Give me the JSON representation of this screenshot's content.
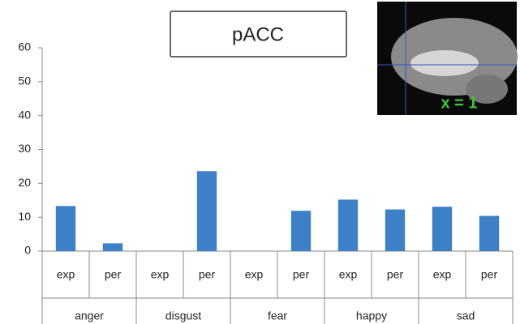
{
  "chart_data": {
    "type": "bar",
    "title": "pACC",
    "groups": [
      "anger",
      "disgust",
      "fear",
      "happy",
      "sad"
    ],
    "categories": [
      "exp",
      "per",
      "exp",
      "per",
      "exp",
      "per",
      "exp",
      "per",
      "exp",
      "per"
    ],
    "values": [
      13.3,
      2.3,
      0,
      23.6,
      0,
      11.9,
      15.2,
      12.3,
      13.1,
      10.4
    ],
    "color": "#3d80c8",
    "ylim": [
      0,
      60
    ],
    "yticks": [
      0,
      10,
      20,
      30,
      40,
      50,
      60
    ],
    "grid": false,
    "inset_label": "x = 1"
  }
}
